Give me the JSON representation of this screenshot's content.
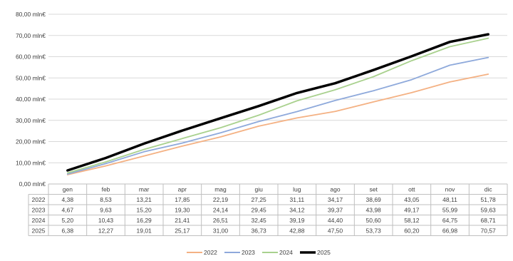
{
  "chart_data": {
    "type": "line",
    "title": "",
    "xlabel": "",
    "ylabel": "",
    "ylim": [
      0,
      80
    ],
    "yticks": [
      0,
      10,
      20,
      30,
      40,
      50,
      60,
      70,
      80
    ],
    "ytick_labels": [
      "0,00 mln€",
      "10,00 mln€",
      "20,00 mln€",
      "30,00 mln€",
      "40,00 mln€",
      "50,00 mln€",
      "60,00 mln€",
      "70,00 mln€",
      "80,00 mln€"
    ],
    "grid": true,
    "legend": "bottom",
    "categories": [
      "gen",
      "feb",
      "mar",
      "apr",
      "mag",
      "giu",
      "lug",
      "ago",
      "set",
      "ott",
      "nov",
      "dic"
    ],
    "series": [
      {
        "name": "2022",
        "color": "#f4b183",
        "values": [
          4.38,
          8.53,
          13.21,
          17.85,
          22.19,
          27.25,
          31.11,
          34.17,
          38.69,
          43.05,
          48.11,
          51.78
        ],
        "labels": [
          "4,38",
          "8,53",
          "13,21",
          "17,85",
          "22,19",
          "27,25",
          "31,11",
          "34,17",
          "38,69",
          "43,05",
          "48,11",
          "51,78"
        ]
      },
      {
        "name": "2023",
        "color": "#8ea9db",
        "values": [
          4.67,
          9.63,
          15.2,
          19.3,
          24.14,
          29.45,
          34.12,
          39.37,
          43.98,
          49.17,
          55.99,
          59.63
        ],
        "labels": [
          "4,67",
          "9,63",
          "15,20",
          "19,30",
          "24,14",
          "29,45",
          "34,12",
          "39,37",
          "43,98",
          "49,17",
          "55,99",
          "59,63"
        ]
      },
      {
        "name": "2024",
        "color": "#a9d18e",
        "values": [
          5.2,
          10.43,
          16.29,
          21.41,
          26.51,
          32.45,
          39.19,
          44.4,
          50.6,
          58.12,
          64.75,
          68.71
        ],
        "labels": [
          "5,20",
          "10,43",
          "16,29",
          "21,41",
          "26,51",
          "32,45",
          "39,19",
          "44,40",
          "50,60",
          "58,12",
          "64,75",
          "68,71"
        ]
      },
      {
        "name": "2025",
        "color": "#000000",
        "values": [
          6.38,
          12.27,
          19.01,
          25.17,
          31.0,
          36.73,
          42.88,
          47.5,
          53.73,
          60.2,
          66.98,
          70.57
        ],
        "labels": [
          "6,38",
          "12,27",
          "19,01",
          "25,17",
          "31,00",
          "36,73",
          "42,88",
          "47,50",
          "53,73",
          "60,20",
          "66,98",
          "70,57"
        ]
      }
    ]
  }
}
